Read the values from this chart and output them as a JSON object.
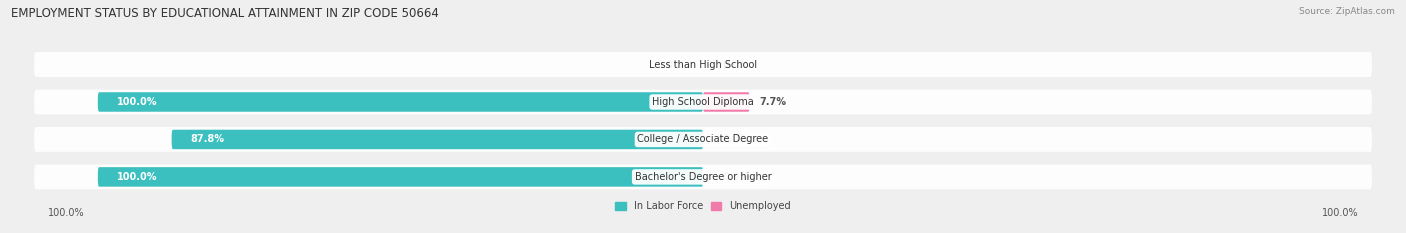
{
  "title": "EMPLOYMENT STATUS BY EDUCATIONAL ATTAINMENT IN ZIP CODE 50664",
  "source": "Source: ZipAtlas.com",
  "categories": [
    "Less than High School",
    "High School Diploma",
    "College / Associate Degree",
    "Bachelor's Degree or higher"
  ],
  "labor_force_pct": [
    0.0,
    100.0,
    87.8,
    100.0
  ],
  "unemployed_pct": [
    0.0,
    7.7,
    0.0,
    0.0
  ],
  "labor_force_color": "#3bbfbf",
  "unemployed_color": "#f07aaa",
  "bg_color": "#efefef",
  "title_fontsize": 8.5,
  "label_fontsize": 7.0,
  "tick_fontsize": 7.0,
  "source_fontsize": 6.5
}
